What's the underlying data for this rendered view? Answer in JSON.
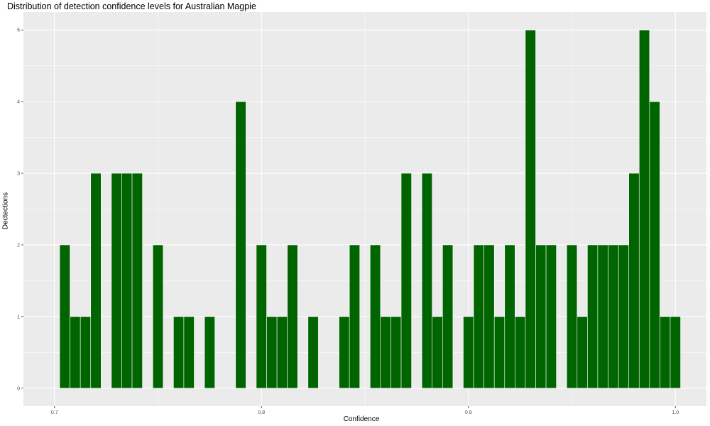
{
  "chart_data": {
    "type": "bar",
    "title": "Distribution of detection confidence levels for Australian Magpie",
    "xlabel": "Confidence",
    "ylabel": "Dectections",
    "xlim": [
      0.685,
      1.015
    ],
    "ylim": [
      -0.25,
      5.25
    ],
    "x_ticks": [
      0.7,
      0.8,
      0.9,
      1.0
    ],
    "x_tick_labels": [
      "0.7",
      "0.8",
      "0.9",
      "1.0"
    ],
    "y_ticks": [
      0,
      1,
      2,
      3,
      4,
      5
    ],
    "y_tick_labels": [
      "0",
      "1",
      "2",
      "3",
      "4",
      "5"
    ],
    "bin_width": 0.005,
    "bar_color": "#006400",
    "panel_color": "#ebebeb",
    "grid": true,
    "legend": "none",
    "x": [
      0.705,
      0.71,
      0.715,
      0.72,
      0.725,
      0.73,
      0.735,
      0.74,
      0.745,
      0.75,
      0.755,
      0.76,
      0.765,
      0.77,
      0.775,
      0.78,
      0.785,
      0.79,
      0.795,
      0.8,
      0.805,
      0.81,
      0.815,
      0.82,
      0.825,
      0.83,
      0.835,
      0.84,
      0.845,
      0.85,
      0.855,
      0.86,
      0.865,
      0.87,
      0.875,
      0.88,
      0.885,
      0.89,
      0.895,
      0.9,
      0.905,
      0.91,
      0.915,
      0.92,
      0.925,
      0.93,
      0.935,
      0.94,
      0.945,
      0.95,
      0.955,
      0.96,
      0.965,
      0.97,
      0.975,
      0.98,
      0.985,
      0.99,
      0.995,
      1.0
    ],
    "values": [
      2,
      1,
      1,
      3,
      0,
      3,
      3,
      3,
      0,
      2,
      0,
      1,
      1,
      0,
      1,
      0,
      0,
      4,
      0,
      2,
      1,
      1,
      2,
      0,
      1,
      0,
      0,
      1,
      2,
      0,
      2,
      1,
      1,
      3,
      0,
      3,
      1,
      2,
      0,
      1,
      2,
      2,
      1,
      2,
      1,
      5,
      2,
      2,
      0,
      2,
      1,
      2,
      2,
      2,
      2,
      3,
      5,
      4,
      1,
      1
    ]
  }
}
